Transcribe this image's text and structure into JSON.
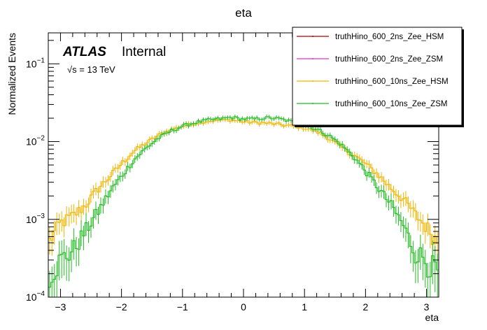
{
  "chart_data": {
    "type": "histogram-step-log",
    "title": "eta",
    "xlabel": "eta",
    "ylabel": "Normalized Events",
    "xlim": [
      -3.2,
      3.2
    ],
    "ylim": [
      0.0001,
      0.25
    ],
    "yscale": "log",
    "x_ticks": [
      -3,
      -2,
      -1,
      0,
      1,
      2,
      3
    ],
    "x_tick_labels": [
      "−3",
      "−2",
      "−1",
      "0",
      "1",
      "2",
      "3"
    ],
    "y_ticks": [
      0.0001,
      0.001,
      0.01,
      0.1
    ],
    "y_tick_labels": [
      {
        "base": "10",
        "exp": "−4"
      },
      {
        "base": "10",
        "exp": "−3"
      },
      {
        "base": "10",
        "exp": "−2"
      },
      {
        "base": "10",
        "exp": "−1"
      }
    ],
    "annotations": {
      "atlas": "ATLAS",
      "internal": "Internal",
      "energy_sqrt": "√s",
      "energy_rest": " = 13 TeV"
    },
    "legend_placement": "top-right",
    "grid": false,
    "profile": {
      "description_free": true,
      "eta": [
        -3.2,
        -3.0,
        -2.8,
        -2.6,
        -2.4,
        -2.2,
        -2.0,
        -1.8,
        -1.6,
        -1.4,
        -1.2,
        -1.0,
        -0.8,
        -0.6,
        -0.4,
        -0.2,
        0.0,
        0.2,
        0.4,
        0.6,
        0.8,
        1.0,
        1.2,
        1.4,
        1.6,
        1.8,
        2.0,
        2.2,
        2.4,
        2.6,
        2.8,
        3.0,
        3.2
      ],
      "series_yellow": [
        0.0005,
        0.0009,
        0.0011,
        0.0015,
        0.0024,
        0.0035,
        0.0052,
        0.0075,
        0.0095,
        0.012,
        0.0142,
        0.0158,
        0.0172,
        0.0183,
        0.0188,
        0.019,
        0.018,
        0.0176,
        0.0172,
        0.0165,
        0.0158,
        0.015,
        0.0135,
        0.011,
        0.0085,
        0.0068,
        0.0052,
        0.0038,
        0.0026,
        0.0019,
        0.0012,
        0.0008,
        0.0005
      ],
      "series_green": [
        0.0002,
        0.0003,
        0.0004,
        0.0007,
        0.0012,
        0.0022,
        0.0036,
        0.0058,
        0.0082,
        0.011,
        0.0135,
        0.0158,
        0.0175,
        0.0188,
        0.0196,
        0.0205,
        0.0195,
        0.0196,
        0.0203,
        0.0196,
        0.018,
        0.0165,
        0.0145,
        0.012,
        0.0092,
        0.0065,
        0.0042,
        0.0026,
        0.0016,
        0.0009,
        0.0004,
        0.0003,
        0.0002
      ]
    },
    "series": [
      {
        "name": "truthHino_600_2ns_Zee_HSM",
        "color": "#aa0000",
        "drawn": false
      },
      {
        "name": "truthHino_600_2ns_Zee_ZSM",
        "color": "#dd33cc",
        "drawn": false
      },
      {
        "name": "truthHino_600_10ns_Zee_HSM",
        "color": "#f0b400",
        "drawn": true
      },
      {
        "name": "truthHino_600_10ns_Zee_ZSM",
        "color": "#22bb22",
        "drawn": true
      }
    ]
  }
}
